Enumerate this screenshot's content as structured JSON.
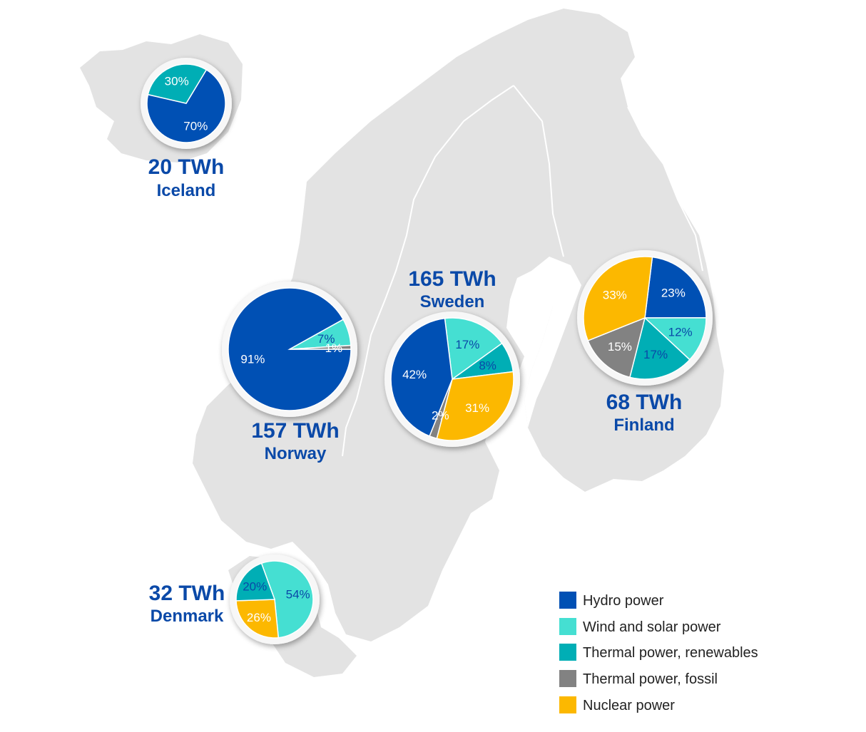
{
  "colors": {
    "hydro": "#0050b4",
    "wind_solar": "#45dfd2",
    "thermal_renewables": "#00aeb5",
    "thermal_fossil": "#828282",
    "nuclear": "#fcb800",
    "country_text": "#0a49a8",
    "map_land": "#e3e3e3",
    "legend_text": "#222222"
  },
  "chart_data": [
    {
      "type": "pie",
      "country": "Iceland",
      "total": "20 TWh",
      "slices": [
        {
          "category": "Hydro power",
          "value": 70,
          "label": "70%",
          "color": "#0050b4",
          "label_color": "#ffffff"
        },
        {
          "category": "Thermal power, renewables",
          "value": 30,
          "label": "30%",
          "color": "#00aeb5",
          "label_color": "#ffffff"
        }
      ]
    },
    {
      "type": "pie",
      "country": "Norway",
      "total": "157 TWh",
      "slices": [
        {
          "category": "Hydro power",
          "value": 91,
          "label": "91%",
          "color": "#0050b4",
          "label_color": "#ffffff"
        },
        {
          "category": "Wind and solar power",
          "value": 7,
          "label": "7%",
          "color": "#45dfd2",
          "label_color": "#0a49a8"
        },
        {
          "category": "Thermal power, fossil",
          "value": 1,
          "label": "1%",
          "color": "#828282",
          "label_color": "#ffffff"
        }
      ]
    },
    {
      "type": "pie",
      "country": "Sweden",
      "total": "165 TWh",
      "slices": [
        {
          "category": "Wind and solar power",
          "value": 17,
          "label": "17%",
          "color": "#45dfd2",
          "label_color": "#0a49a8"
        },
        {
          "category": "Thermal power, renewables",
          "value": 8,
          "label": "8%",
          "color": "#00aeb5",
          "label_color": "#0a49a8"
        },
        {
          "category": "Nuclear power",
          "value": 31,
          "label": "31%",
          "color": "#fcb800",
          "label_color": "#ffffff"
        },
        {
          "category": "Thermal power, fossil",
          "value": 2,
          "label": "2%",
          "color": "#828282",
          "label_color": "#ffffff"
        },
        {
          "category": "Hydro power",
          "value": 42,
          "label": "42%",
          "color": "#0050b4",
          "label_color": "#ffffff"
        }
      ]
    },
    {
      "type": "pie",
      "country": "Finland",
      "total": "68 TWh",
      "slices": [
        {
          "category": "Hydro power",
          "value": 23,
          "label": "23%",
          "color": "#0050b4",
          "label_color": "#ffffff"
        },
        {
          "category": "Wind and solar power",
          "value": 12,
          "label": "12%",
          "color": "#45dfd2",
          "label_color": "#0a49a8"
        },
        {
          "category": "Thermal power, renewables",
          "value": 17,
          "label": "17%",
          "color": "#00aeb5",
          "label_color": "#0a49a8"
        },
        {
          "category": "Thermal power, fossil",
          "value": 15,
          "label": "15%",
          "color": "#828282",
          "label_color": "#ffffff"
        },
        {
          "category": "Nuclear power",
          "value": 33,
          "label": "33%",
          "color": "#fcb800",
          "label_color": "#ffffff"
        }
      ]
    },
    {
      "type": "pie",
      "country": "Denmark",
      "total": "32 TWh",
      "slices": [
        {
          "category": "Wind and solar power",
          "value": 54,
          "label": "54%",
          "color": "#45dfd2",
          "label_color": "#0a49a8"
        },
        {
          "category": "Nuclear power",
          "value": 26,
          "label": "26%",
          "color": "#fcb800",
          "label_color": "#ffffff"
        },
        {
          "category": "Thermal power, renewables",
          "value": 20,
          "label": "20%",
          "color": "#00aeb5",
          "label_color": "#0a49a8"
        }
      ]
    }
  ],
  "legend": [
    {
      "label": "Hydro power",
      "color": "#0050b4"
    },
    {
      "label": "Wind and solar power",
      "color": "#45dfd2"
    },
    {
      "label": "Thermal power, renewables",
      "color": "#00aeb5"
    },
    {
      "label": "Thermal power, fossil",
      "color": "#828282"
    },
    {
      "label": "Nuclear power",
      "color": "#fcb800"
    }
  ]
}
